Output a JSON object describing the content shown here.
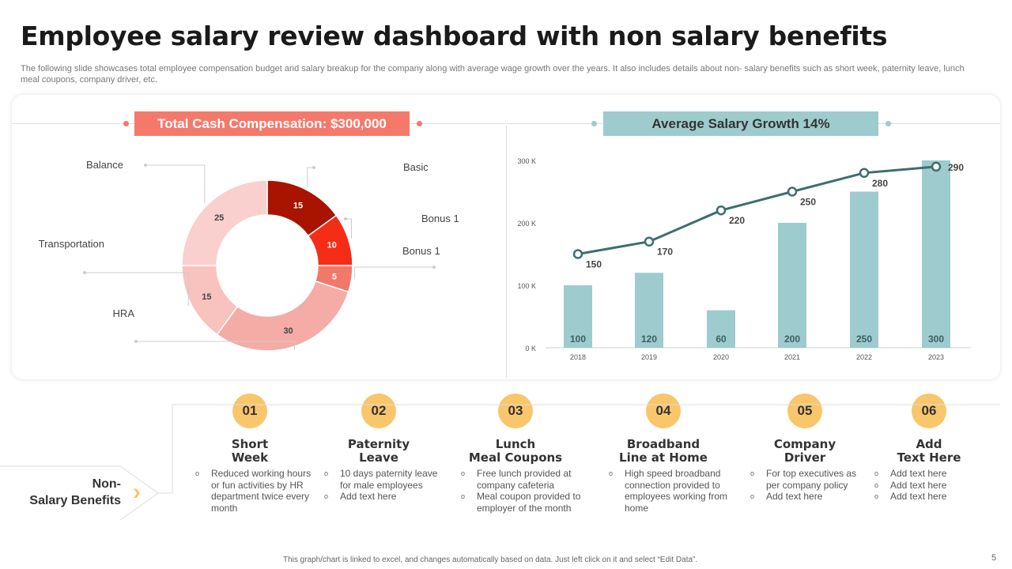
{
  "title": "Employee salary review dashboard with non salary benefits",
  "subtitle": "The following slide showcases total employee compensation budget and salary breakup for the company along with average wage growth over the years. It also includes details about non- salary benefits such as short week, paternity leave, lunch meal coupons, company driver, etc.",
  "left_banner": "Total Cash Compensation: $300,000",
  "right_banner": "Average Salary Growth 14%",
  "colors": {
    "accent_red": "#f4796b",
    "accent_teal": "#9ecbce",
    "line": "#3d6e70",
    "badge": "#f9c66b"
  },
  "chart_data": [
    {
      "type": "pie",
      "donut": true,
      "slices": [
        {
          "label": "Basic",
          "value": 15,
          "color": "#a81400"
        },
        {
          "label": "Bonus 1",
          "value": 10,
          "color": "#f52d17"
        },
        {
          "label": "Bonus 1",
          "value": 5,
          "color": "#f2786a"
        },
        {
          "label": "HRA",
          "value": 30,
          "color": "#f5aca6"
        },
        {
          "label": "Transportation",
          "value": 15,
          "color": "#f8c2be"
        },
        {
          "label": "Balance",
          "value": 25,
          "color": "#f9d0cd"
        }
      ]
    },
    {
      "type": "bar",
      "categories": [
        "2018",
        "2019",
        "2020",
        "2021",
        "2022",
        "2023"
      ],
      "ylim": [
        0,
        300
      ],
      "yticks": [
        "0 K",
        "100 K",
        "200 K",
        "300 K"
      ],
      "series": [
        {
          "type": "bar",
          "values": [
            100,
            120,
            60,
            200,
            250,
            300
          ]
        },
        {
          "type": "line",
          "values": [
            150,
            170,
            220,
            250,
            280,
            290
          ]
        }
      ]
    }
  ],
  "section_label": {
    "line1": "Non-",
    "line2": "Salary Benefits"
  },
  "benefits": [
    {
      "num": "01",
      "title1": "Short",
      "title2": "Week",
      "items": [
        "Reduced working hours or fun activities by HR department twice every  month"
      ]
    },
    {
      "num": "02",
      "title1": "Paternity",
      "title2": "Leave",
      "items": [
        "10 days paternity leave for male employees",
        "Add text here"
      ]
    },
    {
      "num": "03",
      "title1": "Lunch",
      "title2": "Meal Coupons",
      "items": [
        "Free lunch provided at company cafeteria",
        "Meal coupon provided to  employer of the month"
      ]
    },
    {
      "num": "04",
      "title1": "Broadband",
      "title2": "Line at Home",
      "items": [
        "High speed broadband connection provided to  employees working from home"
      ]
    },
    {
      "num": "05",
      "title1": "Company",
      "title2": "Driver",
      "items": [
        "For top executives as per company policy",
        "Add text here"
      ]
    },
    {
      "num": "06",
      "title1": "Add",
      "title2": "Text Here",
      "items": [
        "Add text here",
        "Add text here",
        "Add text here"
      ]
    }
  ],
  "footer": "This graph/chart is linked to excel, and changes automatically based on data. Just left click on it and select “Edit Data”.",
  "page_number": "5"
}
